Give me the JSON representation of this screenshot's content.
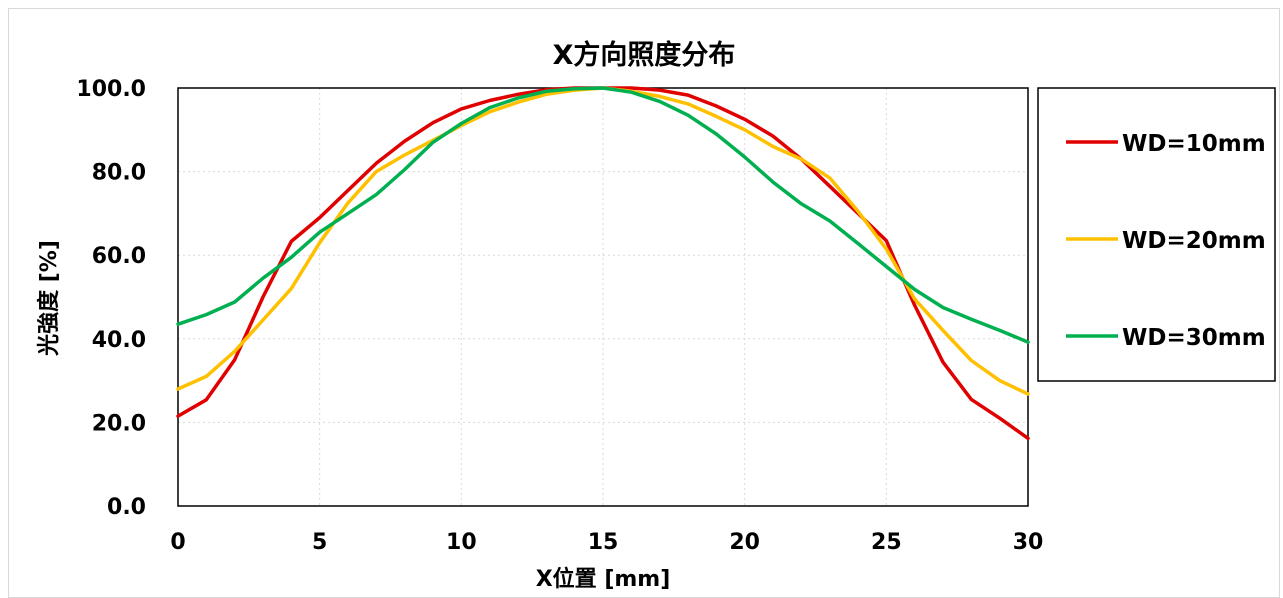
{
  "chart_data": {
    "type": "line",
    "title": "X方向照度分布",
    "xlabel": "X位置 [mm]",
    "ylabel": "光強度 [%]",
    "x": [
      0,
      1,
      2,
      3,
      4,
      5,
      6,
      7,
      8,
      9,
      10,
      11,
      12,
      13,
      14,
      15,
      16,
      17,
      18,
      19,
      20,
      21,
      22,
      23,
      24,
      25,
      26,
      27,
      28,
      29,
      30
    ],
    "xlim": [
      0,
      30
    ],
    "ylim": [
      0,
      100
    ],
    "x_ticks": [
      "0",
      "5",
      "10",
      "15",
      "20",
      "25",
      "30"
    ],
    "y_ticks": [
      "0.0",
      "20.0",
      "40.0",
      "60.0",
      "80.0",
      "100.0"
    ],
    "grid": "dotted",
    "legend_position": "right",
    "series": [
      {
        "name": "WD=10mm",
        "color": "#e00000",
        "values": [
          21.5,
          25.4,
          35.0,
          50.0,
          63.3,
          69.0,
          75.5,
          82.0,
          87.3,
          91.7,
          95.0,
          97.0,
          98.5,
          99.6,
          100.0,
          100.0,
          100.0,
          99.5,
          98.3,
          95.7,
          92.5,
          88.5,
          83.0,
          76.5,
          70.0,
          63.5,
          48.0,
          34.4,
          25.5,
          21.0,
          16.2
        ]
      },
      {
        "name": "WD=20mm",
        "color": "#ffc000",
        "values": [
          28.0,
          31.0,
          37.0,
          44.5,
          52.0,
          63.0,
          72.5,
          80.0,
          84.0,
          87.5,
          91.0,
          94.3,
          96.6,
          98.5,
          99.5,
          100.0,
          99.2,
          98.0,
          96.2,
          93.2,
          90.0,
          86.0,
          83.0,
          78.5,
          70.5,
          61.5,
          49.5,
          42.0,
          34.8,
          30.0,
          26.8
        ]
      },
      {
        "name": "WD=30mm",
        "color": "#00b050",
        "values": [
          43.5,
          45.8,
          48.8,
          54.5,
          59.5,
          65.5,
          70.0,
          74.5,
          80.5,
          87.0,
          91.5,
          95.3,
          97.6,
          99.2,
          99.8,
          100.0,
          99.0,
          96.8,
          93.5,
          89.0,
          83.5,
          77.5,
          72.3,
          68.2,
          62.8,
          57.3,
          51.8,
          47.5,
          44.7,
          42.0,
          39.2
        ]
      }
    ]
  }
}
